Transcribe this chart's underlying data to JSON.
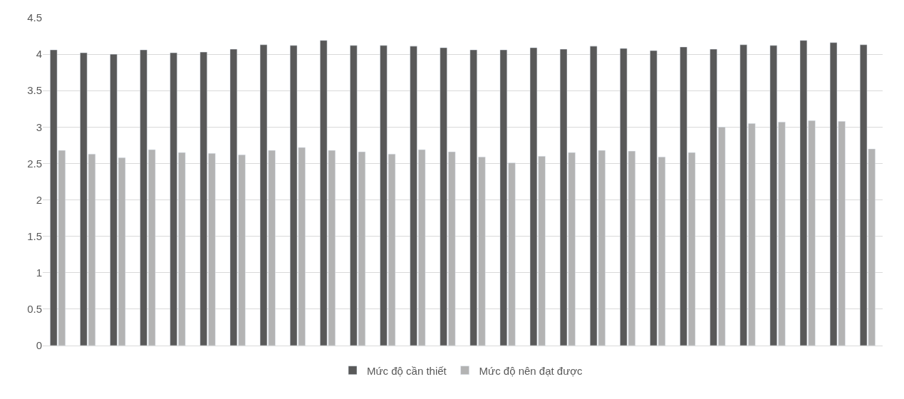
{
  "chart_data": {
    "type": "bar",
    "categories": [
      null,
      null,
      null,
      null,
      null,
      null,
      null,
      null,
      null,
      null,
      null,
      null,
      null,
      null,
      null,
      null,
      null,
      null,
      null,
      null,
      null,
      null,
      null,
      null,
      null,
      null,
      null,
      null
    ],
    "series": [
      {
        "name": "Mức độ cần thiết",
        "color": "#595959",
        "values": [
          4.06,
          4.02,
          4.0,
          4.06,
          4.02,
          4.03,
          4.07,
          4.13,
          4.12,
          4.19,
          4.12,
          4.12,
          4.11,
          4.09,
          4.06,
          4.06,
          4.09,
          4.07,
          4.11,
          4.08,
          4.05,
          4.1,
          4.07,
          4.13,
          4.12,
          4.19,
          4.16,
          4.13
        ]
      },
      {
        "name": "Mức độ nên đạt được",
        "color": "#b3b3b3",
        "values": [
          2.68,
          2.63,
          2.58,
          2.69,
          2.65,
          2.64,
          2.62,
          2.68,
          2.72,
          2.68,
          2.66,
          2.63,
          2.69,
          2.66,
          2.59,
          2.51,
          2.6,
          2.65,
          2.68,
          2.67,
          2.59,
          2.65,
          3.0,
          3.05,
          3.07,
          3.09,
          3.08,
          2.7
        ]
      }
    ],
    "ylim": [
      0,
      4.5
    ],
    "yticks": [
      0,
      0.5,
      1,
      1.5,
      2,
      2.5,
      3,
      3.5,
      4,
      4.5
    ],
    "grid": "y",
    "legend": "bottom"
  }
}
